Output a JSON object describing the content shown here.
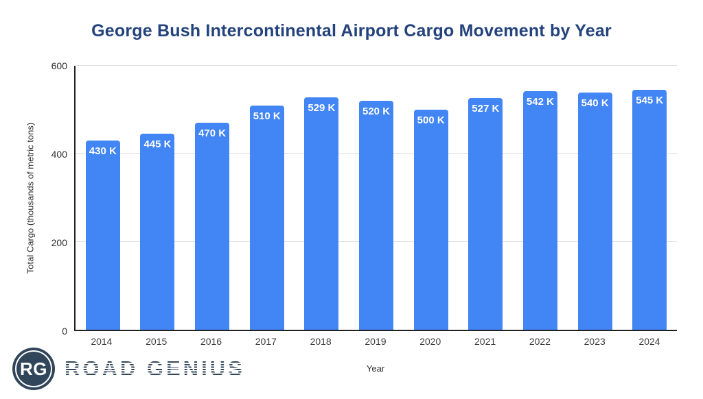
{
  "title": {
    "text": "George Bush Intercontinental Airport Cargo Movement by Year",
    "color": "#24437c"
  },
  "branding": {
    "monogram": "RG",
    "name": "ROAD GENIUS",
    "color": "#31465a"
  },
  "chart_data": {
    "type": "bar",
    "title": "George Bush Intercontinental Airport Cargo Movement by Year",
    "xlabel": "Year",
    "ylabel": "Total Cargo (thousands of metric tons)",
    "categories": [
      "2014",
      "2015",
      "2016",
      "2017",
      "2018",
      "2019",
      "2020",
      "2021",
      "2022",
      "2023",
      "2024"
    ],
    "values": [
      430,
      445,
      470,
      510,
      529,
      520,
      500,
      527,
      542,
      540,
      545
    ],
    "bar_labels": [
      "430 K",
      "445 K",
      "470 K",
      "510 K",
      "529 K",
      "520 K",
      "500 K",
      "527 K",
      "542 K",
      "540 K",
      "545 K"
    ],
    "ylim": [
      0,
      600
    ],
    "yticks": [
      0,
      200,
      400,
      600
    ],
    "grid": true,
    "legend": false,
    "bar_color": "#4285f4",
    "bar_label_color": "#ffffff"
  }
}
